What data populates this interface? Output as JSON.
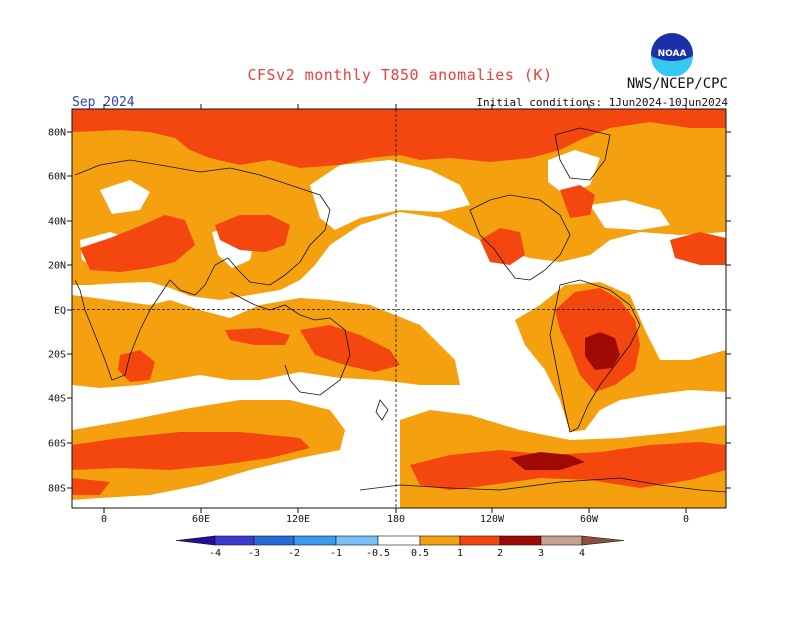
{
  "header": {
    "title": "CFSv2 monthly T850 anomalies (K)",
    "organization": "NWS/NCEP/CPC",
    "logo_text": "NOAA",
    "valid_month": "Sep 2024",
    "initial_conditions": "Initial conditions: 1Jun2024-10Jun2024"
  },
  "map": {
    "projection": "equirectangular",
    "lat_labels": [
      "80N",
      "60N",
      "40N",
      "20N",
      "EQ",
      "20S",
      "40S",
      "60S",
      "80S"
    ],
    "lon_labels": [
      "0",
      "60E",
      "120E",
      "180",
      "120W",
      "60W",
      "0"
    ],
    "reference_lines": [
      "equator (dashed)",
      "dateline (dashed)"
    ],
    "fill_colors": {
      "0.5-1": "#f5a10f",
      "1-2": "#f4460f",
      "2-3": "#a00a05",
      "ocean_land_background": "#ffffff"
    }
  },
  "colorbar": {
    "labels": [
      "-4",
      "-3",
      "-2",
      "-1",
      "-0.5",
      "0.5",
      "1",
      "2",
      "3",
      "4"
    ],
    "colors": [
      "#2a0a9a",
      "#3a3ad0",
      "#2a6ad8",
      "#3a9af0",
      "#7ac0f8",
      "#ffffff",
      "#f5a10f",
      "#f4460f",
      "#a00a05",
      "#c8a090",
      "#8a5040"
    ]
  }
}
